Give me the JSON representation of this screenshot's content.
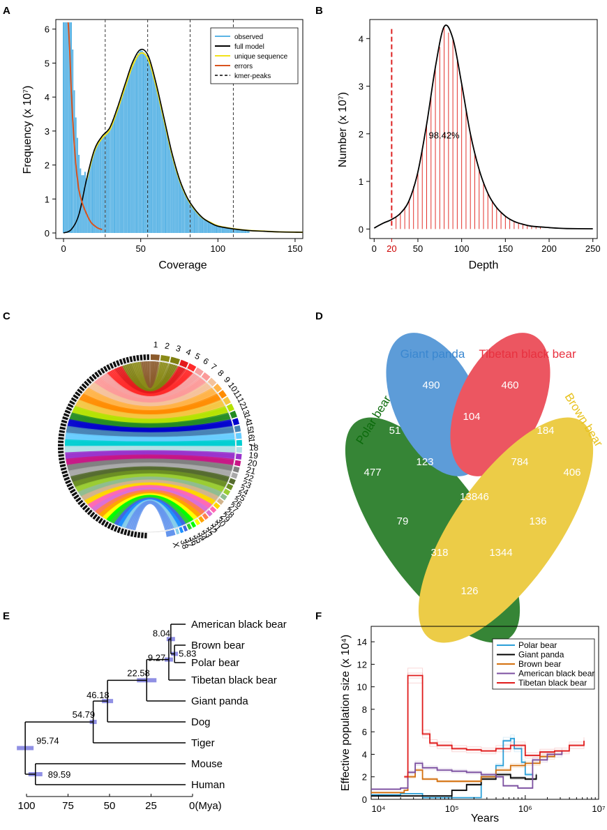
{
  "panels": {
    "A": {
      "label": "A",
      "chart_data": {
        "type": "area",
        "xlabel": "Coverage",
        "ylabel": "Frequency (x 10⁷)",
        "xlim": [
          -5,
          155
        ],
        "ylim": [
          0,
          6.2
        ],
        "xticks": [
          "0",
          "50",
          "100",
          "150"
        ],
        "yticks": [
          "0",
          "1",
          "2",
          "3",
          "4",
          "5",
          "6"
        ],
        "legend": [
          "observed",
          "full model",
          "unique sequence",
          "errors",
          "kmer-peaks"
        ],
        "kmer_peaks": [
          27,
          54.5,
          82,
          110
        ],
        "colors": {
          "observed": "#5ab4e5",
          "full_model": "#000000",
          "unique": "#f2e21a",
          "errors": "#d9531e"
        },
        "full_model": {
          "x": [
            0,
            5,
            10,
            15,
            20,
            25,
            30,
            35,
            40,
            45,
            50,
            55,
            60,
            65,
            70,
            75,
            80,
            85,
            90,
            95,
            100,
            110,
            120,
            130,
            140,
            155
          ],
          "y": [
            0,
            0.1,
            0.55,
            1.6,
            2.45,
            2.85,
            3.1,
            3.7,
            4.4,
            5.05,
            5.4,
            5.2,
            4.4,
            3.4,
            2.4,
            1.6,
            1.05,
            0.7,
            0.45,
            0.3,
            0.2,
            0.12,
            0.07,
            0.05,
            0.03,
            0.02
          ]
        },
        "errors": {
          "x": [
            3,
            4,
            5,
            6,
            7,
            8,
            9,
            10,
            12,
            15,
            18,
            22,
            25
          ],
          "y": [
            6.2,
            5.4,
            4.2,
            3.3,
            2.6,
            2.0,
            1.6,
            1.25,
            0.9,
            0.55,
            0.3,
            0.15,
            0.1
          ]
        },
        "observed_extra": {
          "x": [
            0,
            1,
            2,
            3,
            4,
            5,
            6,
            7,
            8,
            9,
            10,
            11,
            12,
            13,
            14
          ],
          "y": [
            6.2,
            6.2,
            6.2,
            6.2,
            6.2,
            6.2,
            5.4,
            4.2,
            3.4,
            2.8,
            2.3,
            1.9,
            1.7,
            1.7,
            1.8
          ]
        }
      }
    },
    "B": {
      "label": "B",
      "chart_data": {
        "type": "line",
        "xlabel": "Depth",
        "ylabel": "Number (x 10⁷)",
        "xlim": [
          -5,
          255
        ],
        "ylim": [
          -0.2,
          4.4
        ],
        "xticks": [
          "0",
          "50",
          "100",
          "150",
          "200",
          "250"
        ],
        "special_tick": "20",
        "yticks": [
          "0",
          "1",
          "2",
          "3",
          "4"
        ],
        "cutoff": 20,
        "annotation": "98.42%",
        "colors": {
          "curve": "#000000",
          "area": "#e3312b"
        },
        "curve": {
          "x": [
            0,
            10,
            20,
            30,
            40,
            50,
            60,
            70,
            80,
            90,
            100,
            110,
            120,
            130,
            140,
            150,
            160,
            170,
            180,
            200,
            220,
            250
          ],
          "y": [
            0.02,
            0.12,
            0.2,
            0.33,
            0.6,
            1.2,
            2.2,
            3.4,
            4.25,
            4.0,
            3.05,
            2.0,
            1.25,
            0.75,
            0.45,
            0.27,
            0.16,
            0.1,
            0.06,
            0.03,
            0.01,
            0.005
          ]
        }
      }
    },
    "C": {
      "label": "C",
      "chromosomes": [
        "1",
        "2",
        "3",
        "4",
        "5",
        "6",
        "7",
        "8",
        "9",
        "10",
        "11",
        "12",
        "13",
        "14",
        "15",
        "16",
        "17",
        "18",
        "19",
        "20",
        "21",
        "22",
        "23",
        "24",
        "25",
        "26",
        "27",
        "28",
        "29",
        "30",
        "31",
        "32",
        "33",
        "34",
        "35",
        "36",
        "37",
        "38",
        "X"
      ],
      "colors": [
        "#8b5a2b",
        "#8a8a17",
        "#7f7f10",
        "#e31a1c",
        "#ff2a2a",
        "#f7a1a1",
        "#fb9a99",
        "#f4c29b",
        "#ffb347",
        "#ff8c00",
        "#f5c542",
        "#b4e200",
        "#228b22",
        "#0000cd",
        "#4682b4",
        "#66ccff",
        "#00ced1",
        "#b0e0e6",
        "#9932cc",
        "#c71585",
        "#808080",
        "#a9a9a9",
        "#556b2f",
        "#6b8e23",
        "#9acd32",
        "#8fbc8f",
        "#d2b48c",
        "#ffd700",
        "#ff69b4",
        "#da70d6",
        "#ff7f50",
        "#ffa500",
        "#ffff00",
        "#00ff00",
        "#32cd32",
        "#4169e1",
        "#1e90ff",
        "#87ceeb",
        "#6495ed"
      ]
    },
    "D": {
      "label": "D",
      "chart_data": {
        "type": "venn",
        "sets": [
          "Polar bear",
          "Giant panda",
          "Tibetan black bear",
          "Brown bear"
        ],
        "set_colors": [
          "#0b6b0b",
          "#3a87d0",
          "#e8313f",
          "#e8c21f"
        ],
        "regions": {
          "giant_panda_only": 490,
          "tibetan_only": 460,
          "polar_only": 477,
          "brown_only": 406,
          "polar_panda": 51,
          "panda_tibetan": 104,
          "tibetan_brown": 184,
          "polar_panda_tibetan": 123,
          "panda_tibetan_brown": 784,
          "all_four": 13846,
          "polar_tibetan": 79,
          "panda_brown": 136,
          "polar_tibetan_brown": 318,
          "polar_panda_brown": 1344,
          "polar_brown": 126
        }
      }
    },
    "E": {
      "label": "E",
      "chart_data": {
        "type": "tree",
        "taxa": [
          "American black bear",
          "Brown bear",
          "Polar bear",
          "Tibetan black bear",
          "Giant panda",
          "Dog",
          "Tiger",
          "Mouse",
          "Human"
        ],
        "node_ages": [
          8.04,
          5.83,
          9.27,
          22.58,
          46.18,
          54.79,
          95.74,
          89.59
        ],
        "xlim": [
          100,
          0
        ],
        "xticks": [
          "100",
          "75",
          "50",
          "25",
          "0(Mya)"
        ],
        "colors": {
          "branch": "#000000",
          "ci": "#6b6bdb"
        }
      }
    },
    "F": {
      "label": "F",
      "chart_data": {
        "type": "line",
        "xlabel": "Years",
        "ylabel": "Effective population size (x 10⁴)",
        "xscale": "log",
        "xlim_log10": [
          3.9,
          7.0
        ],
        "ylim": [
          0,
          15
        ],
        "xticks": [
          "10⁴",
          "10⁵",
          "10⁶",
          "10⁷"
        ],
        "yticks": [
          "0",
          "2",
          "4",
          "6",
          "8",
          "10",
          "12",
          "14"
        ],
        "series": [
          {
            "name": "Polar bear",
            "color": "#2a9fd8",
            "x": [
              3.9,
              4.2,
              4.3,
              4.55,
              4.6,
              5.2,
              5.4,
              5.6,
              5.7,
              5.8,
              5.85,
              5.95,
              6.0,
              6.1
            ],
            "y": [
              0.4,
              0.4,
              0.5,
              0.5,
              0.15,
              0.15,
              2.0,
              3.0,
              5.2,
              5.4,
              4.5,
              3.3,
              2.2,
              2.1
            ]
          },
          {
            "name": "Giant panda",
            "color": "#000000",
            "x": [
              3.9,
              4.8,
              5.0,
              5.2,
              5.4,
              5.6,
              5.8,
              6.0,
              6.15
            ],
            "y": [
              0.3,
              0.3,
              0.8,
              1.3,
              1.8,
              2.2,
              1.9,
              1.8,
              2.2
            ]
          },
          {
            "name": "Brown bear",
            "color": "#d4700e",
            "x": [
              3.9,
              4.2,
              4.35,
              4.4,
              4.5,
              4.6,
              4.8,
              5.0,
              5.4,
              5.6,
              5.8,
              6.0,
              6.2,
              6.4
            ],
            "y": [
              0.6,
              0.6,
              0.8,
              2.0,
              2.6,
              1.8,
              1.6,
              1.6,
              2.0,
              2.6,
              3.0,
              3.2,
              3.8,
              4.1
            ]
          },
          {
            "name": "American black bear",
            "color": "#7b4fa0",
            "x": [
              3.9,
              4.3,
              4.4,
              4.5,
              4.6,
              4.8,
              5.0,
              5.2,
              5.4,
              5.6,
              5.7,
              5.9,
              6.1,
              6.3,
              6.5
            ],
            "y": [
              0.9,
              1.0,
              2.4,
              3.2,
              2.8,
              2.6,
              2.5,
              2.4,
              2.2,
              2.0,
              1.2,
              1.0,
              3.5,
              4.0,
              4.3
            ]
          },
          {
            "name": "Tibetan black bear",
            "color": "#e01b1b",
            "x": [
              4.35,
              4.4,
              4.55,
              4.6,
              4.7,
              4.8,
              5.0,
              5.2,
              5.4,
              5.6,
              5.8,
              6.0,
              6.2,
              6.4,
              6.6,
              6.8
            ],
            "y": [
              2.0,
              11.0,
              11.0,
              5.8,
              5.0,
              4.8,
              4.5,
              4.4,
              4.3,
              4.5,
              4.8,
              3.9,
              4.2,
              4.3,
              4.8,
              5.2
            ]
          }
        ]
      }
    }
  }
}
